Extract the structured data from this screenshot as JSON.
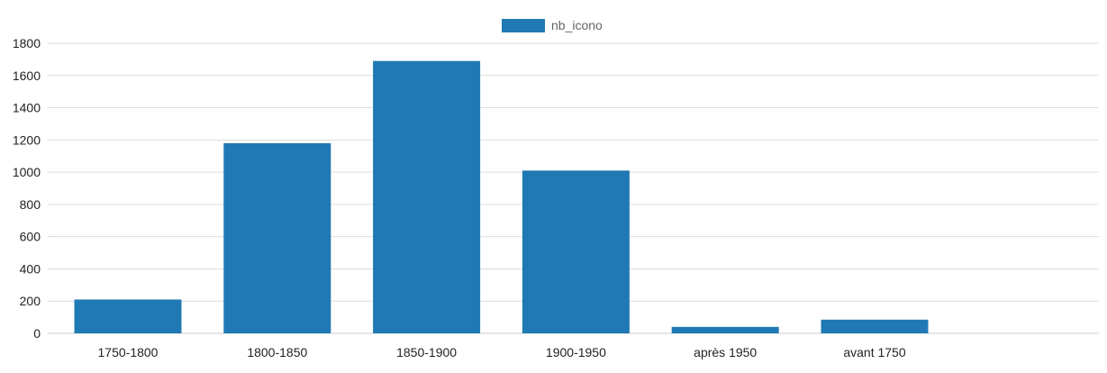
{
  "chart_data": {
    "type": "bar",
    "title": "",
    "xlabel": "",
    "ylabel": "",
    "categories": [
      "1750-1800",
      "1800-1850",
      "1850-1900",
      "1900-1950",
      "après 1950",
      "avant 1750"
    ],
    "series": [
      {
        "name": "nb_icono",
        "values": [
          210,
          1180,
          1690,
          1010,
          40,
          85
        ]
      }
    ],
    "ylim": [
      0,
      1800
    ],
    "yticks": [
      0,
      200,
      400,
      600,
      800,
      1000,
      1200,
      1400,
      1600,
      1800
    ],
    "grid": true,
    "legend_position": "top-center",
    "colors": {
      "bar": "#2079b4",
      "grid": "#dddddd",
      "axis": "#cccccc"
    }
  }
}
